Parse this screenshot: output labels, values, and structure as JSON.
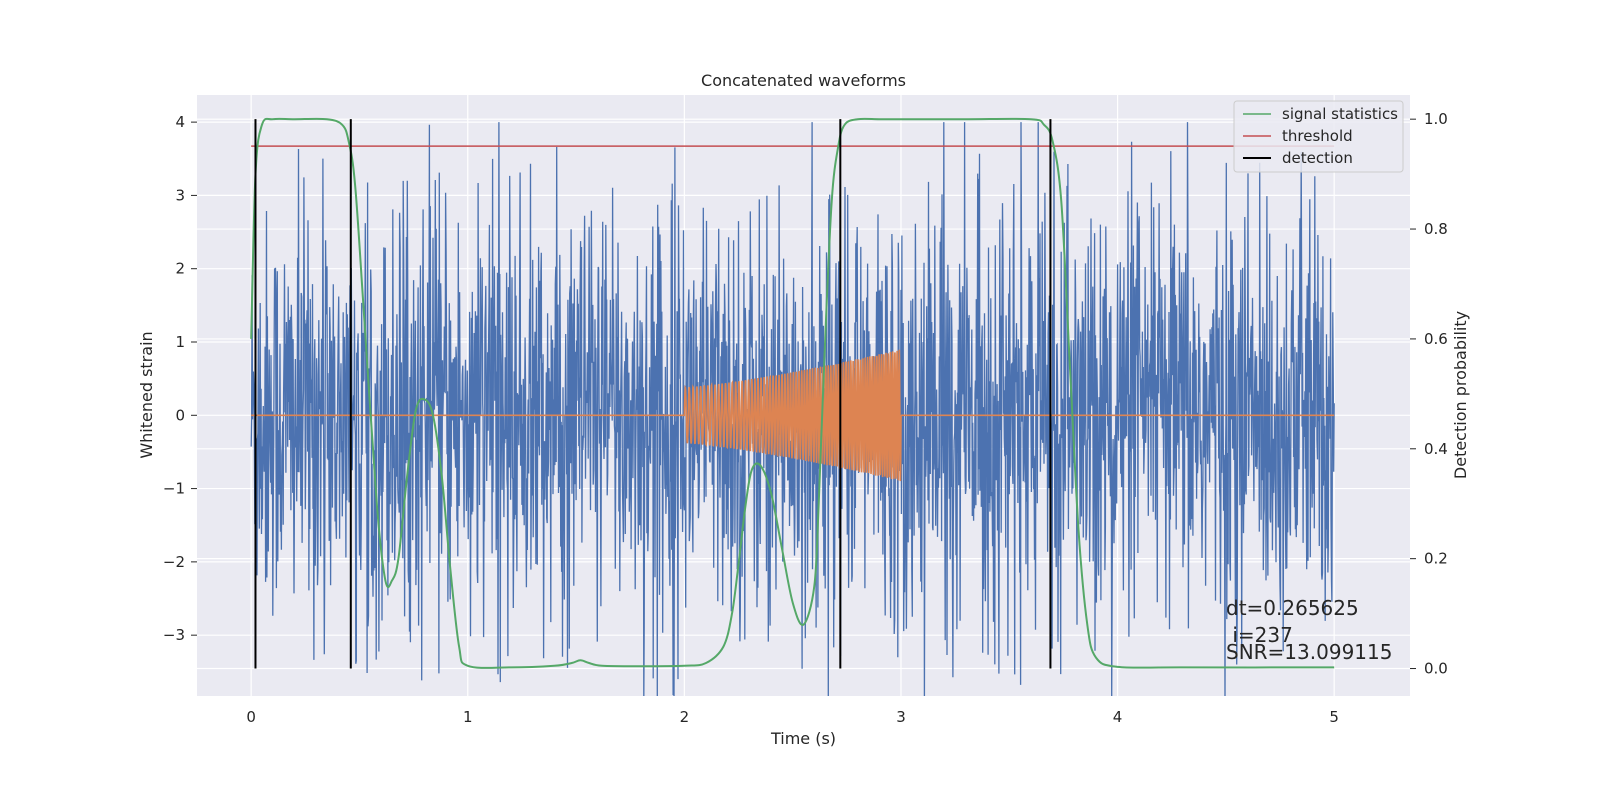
{
  "chart_data": {
    "type": "line",
    "title": "Concatenated waveforms",
    "xlabel": "Time (s)",
    "ylabel_left": "Whitened strain",
    "ylabel_right": "Detection probability",
    "xlim": [
      -0.25,
      5.35
    ],
    "ylim_left": [
      -3.83,
      4.37
    ],
    "ylim_right": [
      -0.05,
      1.044
    ],
    "x_ticks": [
      0,
      1,
      2,
      3,
      4,
      5
    ],
    "x_tick_labels": [
      "0",
      "1",
      "2",
      "3",
      "4",
      "5"
    ],
    "y_left_ticks": [
      -3,
      -2,
      -1,
      0,
      1,
      2,
      3,
      4
    ],
    "y_left_tick_labels": [
      "−3",
      "−2",
      "−1",
      "0",
      "1",
      "2",
      "3",
      "4"
    ],
    "y_right_ticks": [
      0.0,
      0.2,
      0.4,
      0.6,
      0.8,
      1.0
    ],
    "y_right_tick_labels": [
      "0.0",
      "0.2",
      "0.4",
      "0.6",
      "0.8",
      "1.0"
    ],
    "grid": true,
    "legend_position": "top-right",
    "series": [
      {
        "name": "",
        "axis": "left",
        "kind": "noise",
        "color": "#4c72b0",
        "x_range": [
          0,
          5
        ],
        "envelope": 2.5,
        "max_abs": 4.0
      },
      {
        "name": "",
        "axis": "left",
        "kind": "chirp",
        "color": "#dd8452",
        "x_range": [
          0,
          5
        ],
        "chirp_range": [
          2.0,
          3.0
        ],
        "amplitude_start": 0.38,
        "amplitude_end": 0.9
      },
      {
        "name": "signal statistics",
        "axis": "right",
        "color": "#55a868",
        "x": [
          0.0,
          0.02,
          0.05,
          0.1,
          0.2,
          0.35,
          0.42,
          0.45,
          0.48,
          0.52,
          0.58,
          0.62,
          0.65,
          0.68,
          0.72,
          0.76,
          0.8,
          0.84,
          0.88,
          0.92,
          0.96,
          1.0,
          1.2,
          1.4,
          1.48,
          1.52,
          1.56,
          1.62,
          1.8,
          2.0,
          2.1,
          2.18,
          2.22,
          2.25,
          2.28,
          2.31,
          2.35,
          2.4,
          2.45,
          2.5,
          2.55,
          2.6,
          2.62,
          2.65,
          2.68,
          2.71,
          2.74,
          2.8,
          2.9,
          3.0,
          3.3,
          3.6,
          3.66,
          3.7,
          3.74,
          3.78,
          3.82,
          3.86,
          3.9,
          4.0,
          4.3,
          5.0
        ],
        "y": [
          0.6,
          0.9,
          0.99,
          1.0,
          1.0,
          1.0,
          0.99,
          0.96,
          0.88,
          0.65,
          0.3,
          0.16,
          0.16,
          0.2,
          0.35,
          0.47,
          0.49,
          0.46,
          0.35,
          0.18,
          0.04,
          0.005,
          0.002,
          0.005,
          0.01,
          0.015,
          0.01,
          0.005,
          0.004,
          0.005,
          0.01,
          0.04,
          0.1,
          0.19,
          0.29,
          0.36,
          0.37,
          0.32,
          0.22,
          0.12,
          0.08,
          0.15,
          0.3,
          0.6,
          0.85,
          0.95,
          0.99,
          1.0,
          1.0,
          1.0,
          1.0,
          1.0,
          0.99,
          0.96,
          0.85,
          0.55,
          0.25,
          0.08,
          0.02,
          0.003,
          0.002,
          0.002
        ]
      },
      {
        "name": "threshold",
        "axis": "right",
        "color": "#c44e52",
        "x": [
          0,
          5
        ],
        "y": [
          0.951,
          0.951
        ]
      },
      {
        "name": "detection",
        "axis": "right",
        "kind": "vlines",
        "color": "#000000",
        "x": [
          0.02,
          0.46,
          2.72,
          3.69
        ]
      }
    ],
    "annotations": [
      "dt=0.265625",
      " i=237",
      "SNR=13.099115"
    ]
  }
}
